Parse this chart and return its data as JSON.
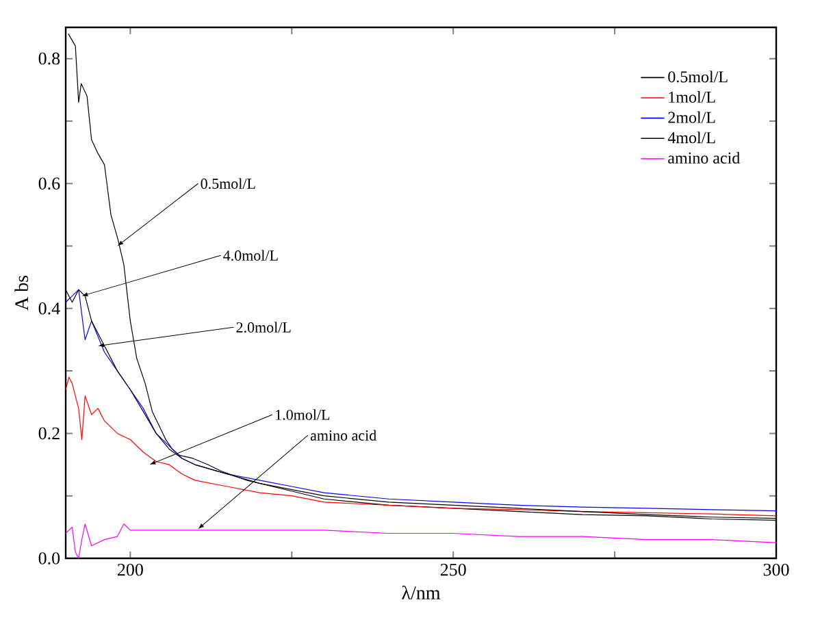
{
  "chart_data": {
    "type": "line",
    "xlabel": "λ/nm",
    "ylabel": "A bs",
    "xlim": [
      190,
      300
    ],
    "ylim": [
      0,
      0.85
    ],
    "xticks": [
      200,
      {
        "value": 225,
        "label": null
      },
      250,
      {
        "value": 275,
        "label": null
      },
      300
    ],
    "yticks": [
      {
        "value": 0,
        "label": "0.0"
      },
      {
        "value": 0.1,
        "label": null
      },
      0.2,
      {
        "value": 0.3,
        "label": null
      },
      0.4,
      {
        "value": 0.5,
        "label": null
      },
      0.6,
      {
        "value": 0.7,
        "label": null
      },
      0.8
    ],
    "grid": false,
    "legend": "top right",
    "marker": "none",
    "line_style": "solid",
    "series": [
      {
        "name": "0.5mol/L",
        "color": "#000000",
        "x": [
          190.4,
          191.5,
          192,
          192.4,
          193.3,
          194,
          194.9,
          196,
          197,
          198.1,
          199,
          200,
          201,
          202.3,
          203.4,
          205.5,
          206.5,
          207.6,
          209.7,
          212,
          214,
          218,
          222,
          230,
          240,
          250,
          260,
          270,
          280,
          290,
          300
        ],
        "values": [
          0.84,
          0.82,
          0.73,
          0.76,
          0.74,
          0.67,
          0.65,
          0.63,
          0.55,
          0.51,
          0.47,
          0.38,
          0.32,
          0.28,
          0.235,
          0.19,
          0.175,
          0.165,
          0.16,
          0.15,
          0.14,
          0.125,
          0.115,
          0.095,
          0.085,
          0.08,
          0.075,
          0.07,
          0.068,
          0.063,
          0.061
        ]
      },
      {
        "name": "1mol/L",
        "color": "#ff0000",
        "x": [
          190,
          190.5,
          191,
          192,
          192.5,
          193,
          194,
          195,
          196,
          198,
          200,
          202,
          204,
          206,
          208,
          210,
          215,
          220,
          225,
          230,
          240,
          250,
          260,
          270,
          280,
          290,
          300
        ],
        "values": [
          0.27,
          0.29,
          0.28,
          0.24,
          0.19,
          0.26,
          0.23,
          0.24,
          0.22,
          0.2,
          0.19,
          0.17,
          0.155,
          0.15,
          0.135,
          0.125,
          0.115,
          0.105,
          0.1,
          0.09,
          0.085,
          0.08,
          0.078,
          0.075,
          0.073,
          0.071,
          0.068
        ]
      },
      {
        "name": "2mol/L",
        "color": "#0000ff",
        "x": [
          190,
          191,
          192,
          193,
          194,
          196,
          198,
          200,
          202,
          204,
          206,
          208,
          210,
          215,
          220,
          225,
          230,
          240,
          250,
          260,
          270,
          280,
          290,
          300
        ],
        "values": [
          0.41,
          0.42,
          0.43,
          0.35,
          0.38,
          0.33,
          0.3,
          0.27,
          0.24,
          0.2,
          0.18,
          0.16,
          0.15,
          0.135,
          0.125,
          0.115,
          0.105,
          0.095,
          0.09,
          0.085,
          0.082,
          0.08,
          0.078,
          0.076
        ]
      },
      {
        "name": "4mol/L",
        "color": "#000000",
        "x": [
          190,
          191,
          192,
          193,
          194,
          196,
          198,
          200,
          202,
          204,
          206,
          208,
          210,
          215,
          220,
          225,
          230,
          240,
          250,
          260,
          270,
          280,
          290,
          300
        ],
        "values": [
          0.43,
          0.41,
          0.43,
          0.42,
          0.38,
          0.34,
          0.3,
          0.27,
          0.235,
          0.2,
          0.175,
          0.16,
          0.15,
          0.135,
          0.12,
          0.11,
          0.1,
          0.09,
          0.085,
          0.08,
          0.075,
          0.07,
          0.066,
          0.064
        ]
      },
      {
        "name": "amino acid",
        "color": "#ff00ff",
        "x": [
          190,
          191,
          191.5,
          192,
          192.5,
          193,
          194,
          196,
          198,
          199,
          200,
          210,
          220,
          230,
          240,
          250,
          260,
          270,
          280,
          290,
          300
        ],
        "values": [
          0.04,
          0.05,
          0.01,
          0.0,
          0.03,
          0.055,
          0.02,
          0.03,
          0.035,
          0.055,
          0.045,
          0.045,
          0.045,
          0.045,
          0.04,
          0.04,
          0.035,
          0.035,
          0.03,
          0.03,
          0.025
        ]
      }
    ],
    "annotations": [
      {
        "text": "0.5mol/L",
        "x": 198,
        "y": 0.5
      },
      {
        "text": "4.0mol/L",
        "x": 192.5,
        "y": 0.42
      },
      {
        "text": "2.0mol/L",
        "x": 195,
        "y": 0.34
      },
      {
        "text": "1.0mol/L",
        "x": 203,
        "y": 0.15
      },
      {
        "text": "amino acid",
        "x": 210.5,
        "y": 0.047
      }
    ]
  }
}
